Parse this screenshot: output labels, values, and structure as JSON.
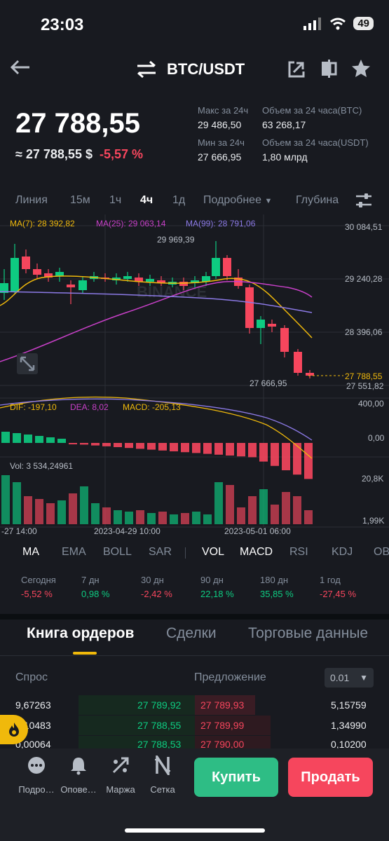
{
  "status": {
    "time": "23:03",
    "battery": "49"
  },
  "header": {
    "pair": "BTC/USDT",
    "back_icon": "arrow-left-icon",
    "swap_icon": "swap-arrows-icon"
  },
  "price": {
    "last": "27 788,55",
    "approx": "≈ 27 788,55 $",
    "change": "-5,57 %"
  },
  "stats": {
    "high_label": "Макс за 24ч",
    "high_value": "29 486,50",
    "low_label": "Мин за 24ч",
    "low_value": "27 666,95",
    "vol_btc_label": "Объем за 24 часа(BTC)",
    "vol_btc_value": "63 268,17",
    "vol_usdt_label": "Объем за 24 часа(USDT)",
    "vol_usdt_value": "1,80 млрд"
  },
  "timeframes": {
    "line": "Линия",
    "m15": "15м",
    "h1": "1ч",
    "h4": "4ч",
    "d1": "1д",
    "more": "Подробнее",
    "depth": "Глубина"
  },
  "chart": {
    "ma7": "MA(7): 28 392,82",
    "ma25": "MA(25): 29 063,14",
    "ma99": "MA(99): 28 791,06",
    "y_ticks": [
      "30 084,51",
      "29 240,28",
      "28 396,06",
      "27 551,82"
    ],
    "current": "27 788,55",
    "max_label": "29 969,39",
    "min_label": "27 666,95",
    "watermark": "BINANCE",
    "colors": {
      "up": "#0ecb81",
      "down": "#f6465d",
      "ma7": "#f0b90b",
      "ma25": "#c840c8",
      "ma99": "#8c7ae6"
    }
  },
  "macd": {
    "dif": "DIF: -197,10",
    "dea": "DEA: 8,02",
    "macd": "MACD: -205,13",
    "y_top": "400,00",
    "y_zero": "0,00"
  },
  "volume": {
    "label": "Vol: 3 534,24961",
    "y_top": "20,8K",
    "y_bottom": "1,99K"
  },
  "x_axis": {
    "t1": "-27 14:00",
    "t2": "2023-04-29 10:00",
    "t3": "2023-05-01 06:00"
  },
  "indicators": {
    "ma": "MA",
    "ema": "EMA",
    "boll": "BOLL",
    "sar": "SAR",
    "vol": "VOL",
    "macd": "MACD",
    "rsi": "RSI",
    "kdj": "KDJ",
    "obv": "OB"
  },
  "performance": [
    {
      "label": "Сегодня",
      "value": "-5,52 %"
    },
    {
      "label": "7 дн",
      "value": "0,98 %"
    },
    {
      "label": "30 дн",
      "value": "-2,42 %"
    },
    {
      "label": "90 дн",
      "value": "22,18 %"
    },
    {
      "label": "180 дн",
      "value": "35,85 %"
    },
    {
      "label": "1 год",
      "value": "-27,45 %"
    }
  ],
  "orderbook": {
    "tab_book": "Книга ордеров",
    "tab_trades": "Сделки",
    "tab_data": "Торговые данные",
    "bid_header": "Спрос",
    "ask_header": "Предложение",
    "precision": "0.01",
    "rows": [
      {
        "bid_qty": "9,67263",
        "bid_price": "27 789,92",
        "ask_price": "27 789,93",
        "ask_qty": "5,15759"
      },
      {
        "bid_qty": "0,10483",
        "bid_price": "27 788,55",
        "ask_price": "27 789,99",
        "ask_qty": "1,34990"
      },
      {
        "bid_qty": "0,00064",
        "bid_price": "27 788,53",
        "ask_price": "27 790,00",
        "ask_qty": "0,10200"
      }
    ]
  },
  "bottom_nav": {
    "more": "Подро…",
    "alerts": "Опове…",
    "margin": "Маржа",
    "grid": "Сетка",
    "buy": "Купить",
    "sell": "Продать"
  }
}
